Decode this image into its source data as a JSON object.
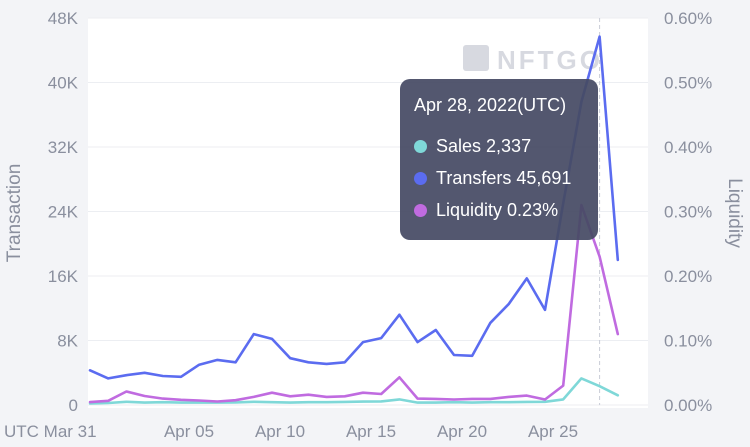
{
  "chart_data": {
    "type": "line",
    "watermark": "NFTGO",
    "x": [
      "Mar 31",
      "Apr 01",
      "Apr 02",
      "Apr 03",
      "Apr 04",
      "Apr 05",
      "Apr 06",
      "Apr 07",
      "Apr 08",
      "Apr 09",
      "Apr 10",
      "Apr 11",
      "Apr 12",
      "Apr 13",
      "Apr 14",
      "Apr 15",
      "Apr 16",
      "Apr 17",
      "Apr 18",
      "Apr 19",
      "Apr 20",
      "Apr 21",
      "Apr 22",
      "Apr 23",
      "Apr 24",
      "Apr 25",
      "Apr 26",
      "Apr 27",
      "Apr 28",
      "Apr 29"
    ],
    "xtick_labels": [
      "UTC Mar 31",
      "Apr 05",
      "Apr 10",
      "Apr 15",
      "Apr 20",
      "Apr 25"
    ],
    "xtick_indices": [
      0,
      5,
      10,
      15,
      20,
      25
    ],
    "ylabel_left": "Transaction",
    "ylabel_right": "Liquidity",
    "ylim_left": [
      0,
      48000
    ],
    "ylim_right": [
      0,
      0.6
    ],
    "yticks_left": [
      "0",
      "8K",
      "16K",
      "24K",
      "32K",
      "40K",
      "48K"
    ],
    "yticks_right": [
      "0.00%",
      "0.10%",
      "0.20%",
      "0.30%",
      "0.40%",
      "0.50%",
      "0.60%"
    ],
    "series": [
      {
        "name": "Sales",
        "axis": "left",
        "color": "#7fd8d8",
        "values": [
          200,
          250,
          400,
          300,
          350,
          300,
          300,
          300,
          320,
          400,
          350,
          300,
          350,
          350,
          380,
          420,
          450,
          700,
          300,
          300,
          350,
          300,
          350,
          350,
          380,
          400,
          700,
          3300,
          2337,
          1200
        ]
      },
      {
        "name": "Transfers",
        "axis": "left",
        "color": "#5b6cf0",
        "values": [
          4300,
          3300,
          3700,
          4000,
          3600,
          3500,
          5000,
          5600,
          5300,
          8800,
          8200,
          5800,
          5300,
          5100,
          5300,
          7800,
          8300,
          11200,
          7800,
          9300,
          6200,
          6100,
          10200,
          12500,
          15700,
          11800,
          25000,
          37600,
          45691,
          18000
        ]
      },
      {
        "name": "Liquidity",
        "axis": "right",
        "color": "#c06be0",
        "values": [
          0.0045,
          0.0065,
          0.021,
          0.014,
          0.01,
          0.008,
          0.007,
          0.0055,
          0.0075,
          0.0125,
          0.019,
          0.0135,
          0.016,
          0.0125,
          0.0135,
          0.019,
          0.017,
          0.043,
          0.01,
          0.0095,
          0.0085,
          0.0095,
          0.0095,
          0.0125,
          0.0145,
          0.0085,
          0.03,
          0.31,
          0.23,
          0.11
        ]
      }
    ],
    "highlight_index": 28
  },
  "tooltip": {
    "title": "Apr 28, 2022(UTC)",
    "rows": [
      {
        "label": "Sales",
        "value": "2,337",
        "color": "#7fd8d8"
      },
      {
        "label": "Transfers",
        "value": "45,691",
        "color": "#5b6cf0"
      },
      {
        "label": "Liquidity",
        "value": "0.23%",
        "color": "#c06be0"
      }
    ]
  }
}
